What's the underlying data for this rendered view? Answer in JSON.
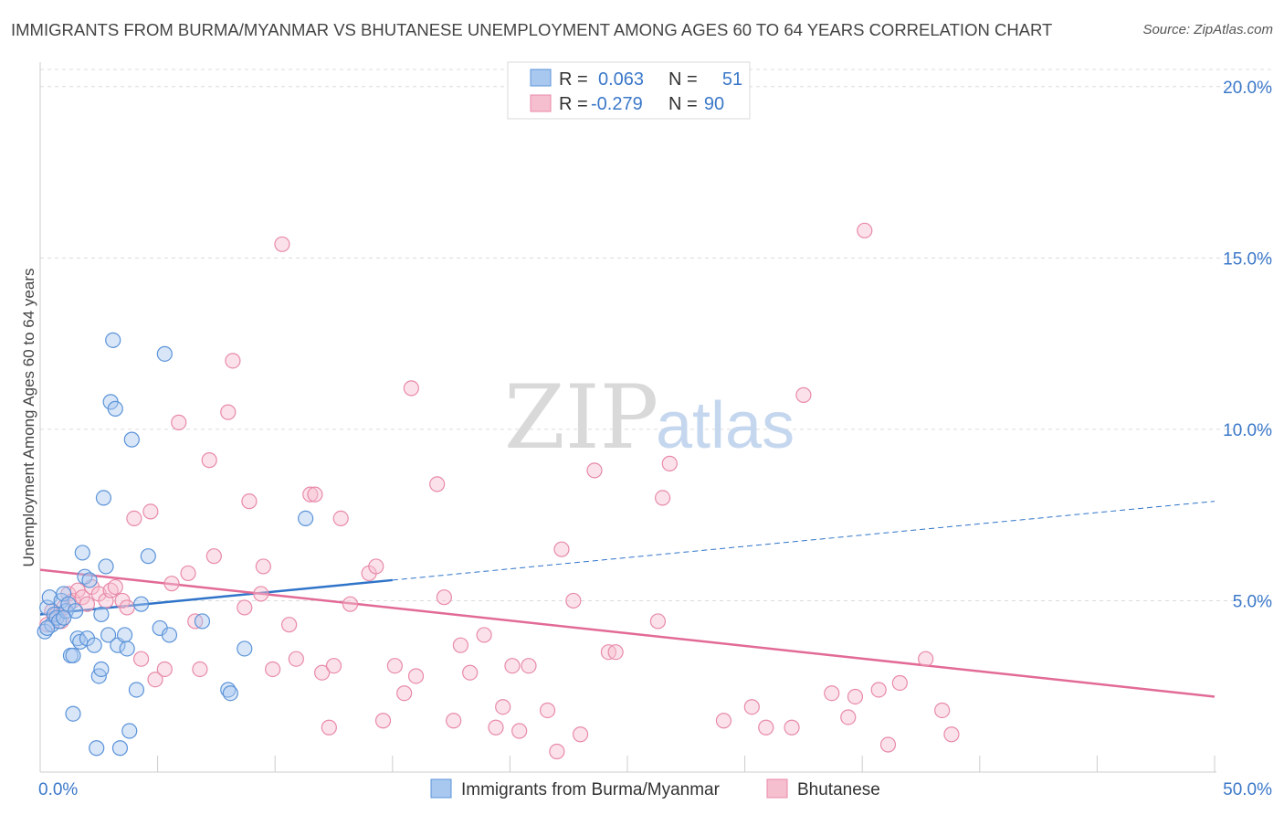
{
  "title": "IMMIGRANTS FROM BURMA/MYANMAR VS BHUTANESE UNEMPLOYMENT AMONG AGES 60 TO 64 YEARS CORRELATION CHART",
  "source": "Source: ZipAtlas.com",
  "watermark": {
    "zip": "ZIP",
    "atlas": "atlas"
  },
  "colors": {
    "blue_fill": "#a8c8f0",
    "blue_stroke": "#5b93d8",
    "blue_line": "#2f74c9",
    "pink_fill": "#f6bfd0",
    "pink_stroke": "#e88aa8",
    "pink_line": "#e26a96",
    "grid": "#dcdcdc",
    "axis_text": "#3b78c9"
  },
  "chart_data": {
    "type": "scatter",
    "xlabel": "",
    "ylabel": "Unemployment Among Ages 60 to 64 years",
    "xlim": [
      0,
      50
    ],
    "ylim": [
      0,
      20.5
    ],
    "x_tick_labels": {
      "min": "0.0%",
      "max": "50.0%"
    },
    "y_ticks": [
      5,
      10,
      15,
      20
    ],
    "y_tick_labels": [
      "5.0%",
      "10.0%",
      "15.0%",
      "20.0%"
    ],
    "legend": [
      {
        "r_label": "R =",
        "r_value": "0.063",
        "n_label": "N =",
        "n_value": "51"
      },
      {
        "r_label": "R =",
        "r_value": "-0.279",
        "n_label": "N =",
        "n_value": "90"
      }
    ],
    "series": [
      {
        "name": "Immigrants from Burma/Myanmar",
        "trend": {
          "x0": 0,
          "y0": 4.6,
          "x1": 15,
          "y1": 5.6,
          "dash_x1": 50,
          "dash_y1": 7.9
        },
        "points": [
          [
            0.2,
            4.1
          ],
          [
            0.3,
            4.8
          ],
          [
            0.4,
            5.1
          ],
          [
            0.5,
            4.3
          ],
          [
            0.6,
            4.6
          ],
          [
            0.7,
            4.5
          ],
          [
            0.8,
            4.4
          ],
          [
            0.9,
            5.0
          ],
          [
            1.0,
            5.2
          ],
          [
            1.1,
            4.7
          ],
          [
            1.2,
            4.9
          ],
          [
            1.3,
            3.4
          ],
          [
            1.4,
            3.4
          ],
          [
            1.5,
            4.7
          ],
          [
            1.4,
            1.7
          ],
          [
            1.6,
            3.9
          ],
          [
            1.7,
            3.8
          ],
          [
            1.8,
            6.4
          ],
          [
            1.9,
            5.7
          ],
          [
            2.0,
            3.9
          ],
          [
            2.1,
            5.6
          ],
          [
            2.3,
            3.7
          ],
          [
            2.4,
            0.7
          ],
          [
            2.5,
            2.8
          ],
          [
            2.6,
            3.0
          ],
          [
            2.6,
            4.6
          ],
          [
            2.7,
            8.0
          ],
          [
            2.8,
            6.0
          ],
          [
            2.9,
            4.0
          ],
          [
            3.0,
            10.8
          ],
          [
            3.1,
            12.6
          ],
          [
            3.2,
            10.6
          ],
          [
            3.3,
            3.7
          ],
          [
            3.4,
            0.7
          ],
          [
            3.6,
            4.0
          ],
          [
            3.7,
            3.6
          ],
          [
            3.8,
            1.2
          ],
          [
            3.9,
            9.7
          ],
          [
            4.1,
            2.4
          ],
          [
            4.3,
            4.9
          ],
          [
            4.6,
            6.3
          ],
          [
            5.1,
            4.2
          ],
          [
            5.3,
            12.2
          ],
          [
            5.5,
            4.0
          ],
          [
            6.9,
            4.4
          ],
          [
            8.0,
            2.4
          ],
          [
            8.1,
            2.3
          ],
          [
            8.7,
            3.6
          ],
          [
            11.3,
            7.4
          ],
          [
            0.3,
            4.2
          ],
          [
            1.0,
            4.5
          ]
        ]
      },
      {
        "name": "Bhutanese",
        "trend": {
          "x0": 0,
          "y0": 5.9,
          "x1": 50,
          "y1": 2.2
        },
        "points": [
          [
            0.3,
            4.3
          ],
          [
            0.5,
            4.7
          ],
          [
            0.7,
            4.6
          ],
          [
            0.9,
            4.4
          ],
          [
            1.0,
            4.8
          ],
          [
            1.2,
            5.2
          ],
          [
            1.4,
            5.0
          ],
          [
            1.6,
            5.3
          ],
          [
            1.8,
            5.1
          ],
          [
            2.0,
            4.9
          ],
          [
            2.2,
            5.4
          ],
          [
            2.5,
            5.2
          ],
          [
            2.8,
            5.0
          ],
          [
            3.0,
            5.3
          ],
          [
            3.2,
            5.4
          ],
          [
            3.5,
            5.0
          ],
          [
            3.7,
            4.8
          ],
          [
            4.0,
            7.4
          ],
          [
            4.3,
            3.3
          ],
          [
            4.7,
            7.6
          ],
          [
            4.9,
            2.7
          ],
          [
            5.3,
            3.0
          ],
          [
            5.6,
            5.5
          ],
          [
            5.9,
            10.2
          ],
          [
            6.3,
            5.8
          ],
          [
            6.6,
            4.4
          ],
          [
            6.8,
            3.0
          ],
          [
            7.2,
            9.1
          ],
          [
            7.4,
            6.3
          ],
          [
            8.0,
            10.5
          ],
          [
            8.2,
            12.0
          ],
          [
            8.7,
            4.8
          ],
          [
            8.9,
            7.9
          ],
          [
            9.4,
            5.2
          ],
          [
            9.5,
            6.0
          ],
          [
            9.9,
            3.0
          ],
          [
            10.3,
            15.4
          ],
          [
            10.6,
            4.3
          ],
          [
            10.9,
            3.3
          ],
          [
            11.5,
            8.1
          ],
          [
            11.7,
            8.1
          ],
          [
            12.0,
            2.9
          ],
          [
            12.3,
            1.3
          ],
          [
            12.5,
            3.1
          ],
          [
            12.8,
            7.4
          ],
          [
            13.2,
            4.9
          ],
          [
            14.0,
            5.8
          ],
          [
            14.3,
            6.0
          ],
          [
            14.6,
            1.5
          ],
          [
            15.1,
            3.1
          ],
          [
            15.5,
            2.3
          ],
          [
            15.8,
            11.2
          ],
          [
            16.0,
            2.8
          ],
          [
            16.9,
            8.4
          ],
          [
            17.2,
            5.1
          ],
          [
            17.6,
            1.5
          ],
          [
            17.9,
            3.7
          ],
          [
            18.3,
            2.9
          ],
          [
            18.9,
            4.0
          ],
          [
            19.4,
            1.3
          ],
          [
            19.7,
            1.9
          ],
          [
            20.1,
            3.1
          ],
          [
            20.4,
            1.2
          ],
          [
            20.8,
            3.1
          ],
          [
            21.6,
            1.8
          ],
          [
            22.0,
            0.6
          ],
          [
            22.2,
            6.5
          ],
          [
            22.7,
            5.0
          ],
          [
            23.0,
            1.1
          ],
          [
            23.6,
            8.8
          ],
          [
            24.2,
            3.5
          ],
          [
            24.5,
            3.5
          ],
          [
            26.3,
            4.4
          ],
          [
            26.5,
            8.0
          ],
          [
            26.8,
            9.0
          ],
          [
            29.1,
            1.5
          ],
          [
            30.3,
            1.9
          ],
          [
            30.9,
            1.3
          ],
          [
            32.0,
            1.3
          ],
          [
            32.5,
            11.0
          ],
          [
            33.7,
            2.3
          ],
          [
            34.4,
            1.6
          ],
          [
            34.7,
            2.2
          ],
          [
            35.1,
            15.8
          ],
          [
            35.7,
            2.4
          ],
          [
            36.1,
            0.8
          ],
          [
            36.6,
            2.6
          ],
          [
            37.7,
            3.3
          ],
          [
            38.4,
            1.8
          ],
          [
            38.8,
            1.1
          ]
        ]
      }
    ]
  },
  "bottom_legend": [
    "Immigrants from Burma/Myanmar",
    "Bhutanese"
  ]
}
